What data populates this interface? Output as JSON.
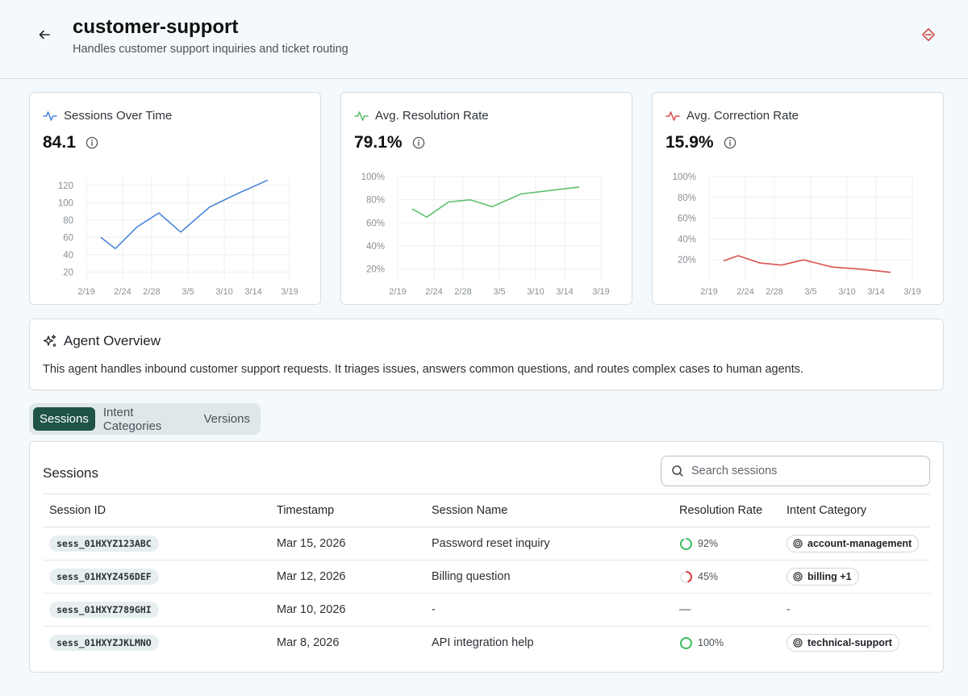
{
  "header": {
    "title": "customer-support",
    "subtitle": "Handles customer support inquiries and ticket routing"
  },
  "metrics": [
    {
      "title": "Sessions Over Time",
      "value": "84.1",
      "color": "#4a86d8",
      "chart_data": {
        "type": "line",
        "x": [
          "2/21",
          "2/23",
          "2/26",
          "3/1",
          "3/4",
          "3/8",
          "3/12",
          "3/16"
        ],
        "values": [
          60,
          47,
          72,
          88,
          66,
          95,
          111,
          126
        ],
        "x_ticks": [
          "2/19",
          "2/24",
          "2/28",
          "3/5",
          "3/10",
          "3/14",
          "3/19"
        ],
        "y_ticks": [
          "20",
          "40",
          "60",
          "80",
          "100",
          "120"
        ],
        "ylim": [
          10,
          130
        ],
        "grid": true
      }
    },
    {
      "title": "Avg. Resolution Rate",
      "value": "79.1%",
      "color": "#5cc16b",
      "chart_data": {
        "type": "line",
        "x": [
          "2/21",
          "2/23",
          "2/26",
          "3/1",
          "3/4",
          "3/8",
          "3/12",
          "3/16"
        ],
        "values": [
          72,
          65,
          78,
          80,
          74,
          85,
          88,
          91
        ],
        "x_ticks": [
          "2/19",
          "2/24",
          "2/28",
          "3/5",
          "3/10",
          "3/14",
          "3/19"
        ],
        "y_ticks": [
          "20%",
          "40%",
          "60%",
          "80%",
          "100%"
        ],
        "ylim": [
          10,
          100
        ],
        "grid": true
      }
    },
    {
      "title": "Avg. Correction Rate",
      "value": "15.9%",
      "color": "#d9534f",
      "chart_data": {
        "type": "line",
        "x": [
          "2/21",
          "2/23",
          "2/26",
          "3/1",
          "3/4",
          "3/8",
          "3/12",
          "3/16"
        ],
        "values": [
          19,
          24,
          17,
          15,
          20,
          13,
          11,
          8
        ],
        "x_ticks": [
          "2/19",
          "2/24",
          "2/28",
          "3/5",
          "3/10",
          "3/14",
          "3/19"
        ],
        "y_ticks": [
          "20%",
          "40%",
          "60%",
          "80%",
          "100%"
        ],
        "ylim": [
          0,
          100
        ],
        "grid": true
      }
    }
  ],
  "overview": {
    "title": "Agent Overview",
    "text": "This agent handles inbound customer support requests. It triages issues, answers common questions, and routes complex cases to human agents."
  },
  "tabs": [
    "Sessions",
    "Intent Categories",
    "Versions"
  ],
  "sessions": {
    "title": "Sessions",
    "search_placeholder": "Search sessions",
    "columns": [
      "Session ID",
      "Timestamp",
      "Session Name",
      "Resolution Rate",
      "Intent Category"
    ],
    "rows": [
      {
        "id": "sess_01HXYZ123ABC",
        "timestamp": "Mar 15, 2026",
        "name": "Password reset inquiry",
        "rate": "92%",
        "rate_value": 0.92,
        "rate_color": "#3ebd5f",
        "intent": "account-management"
      },
      {
        "id": "sess_01HXYZ456DEF",
        "timestamp": "Mar 12, 2026",
        "name": "Billing question",
        "rate": "45%",
        "rate_value": 0.45,
        "rate_color": "#d9383a",
        "intent": "billing +1"
      },
      {
        "id": "sess_01HXYZ789GHI",
        "timestamp": "Mar 10, 2026",
        "name": "-",
        "rate": "—",
        "rate_value": null,
        "rate_color": "",
        "intent": "-"
      },
      {
        "id": "sess_01HXYZJKLMNO",
        "timestamp": "Mar 8, 2026",
        "name": "API integration help",
        "rate": "100%",
        "rate_value": 1.0,
        "rate_color": "#3ebd5f",
        "intent": "technical-support"
      }
    ]
  }
}
